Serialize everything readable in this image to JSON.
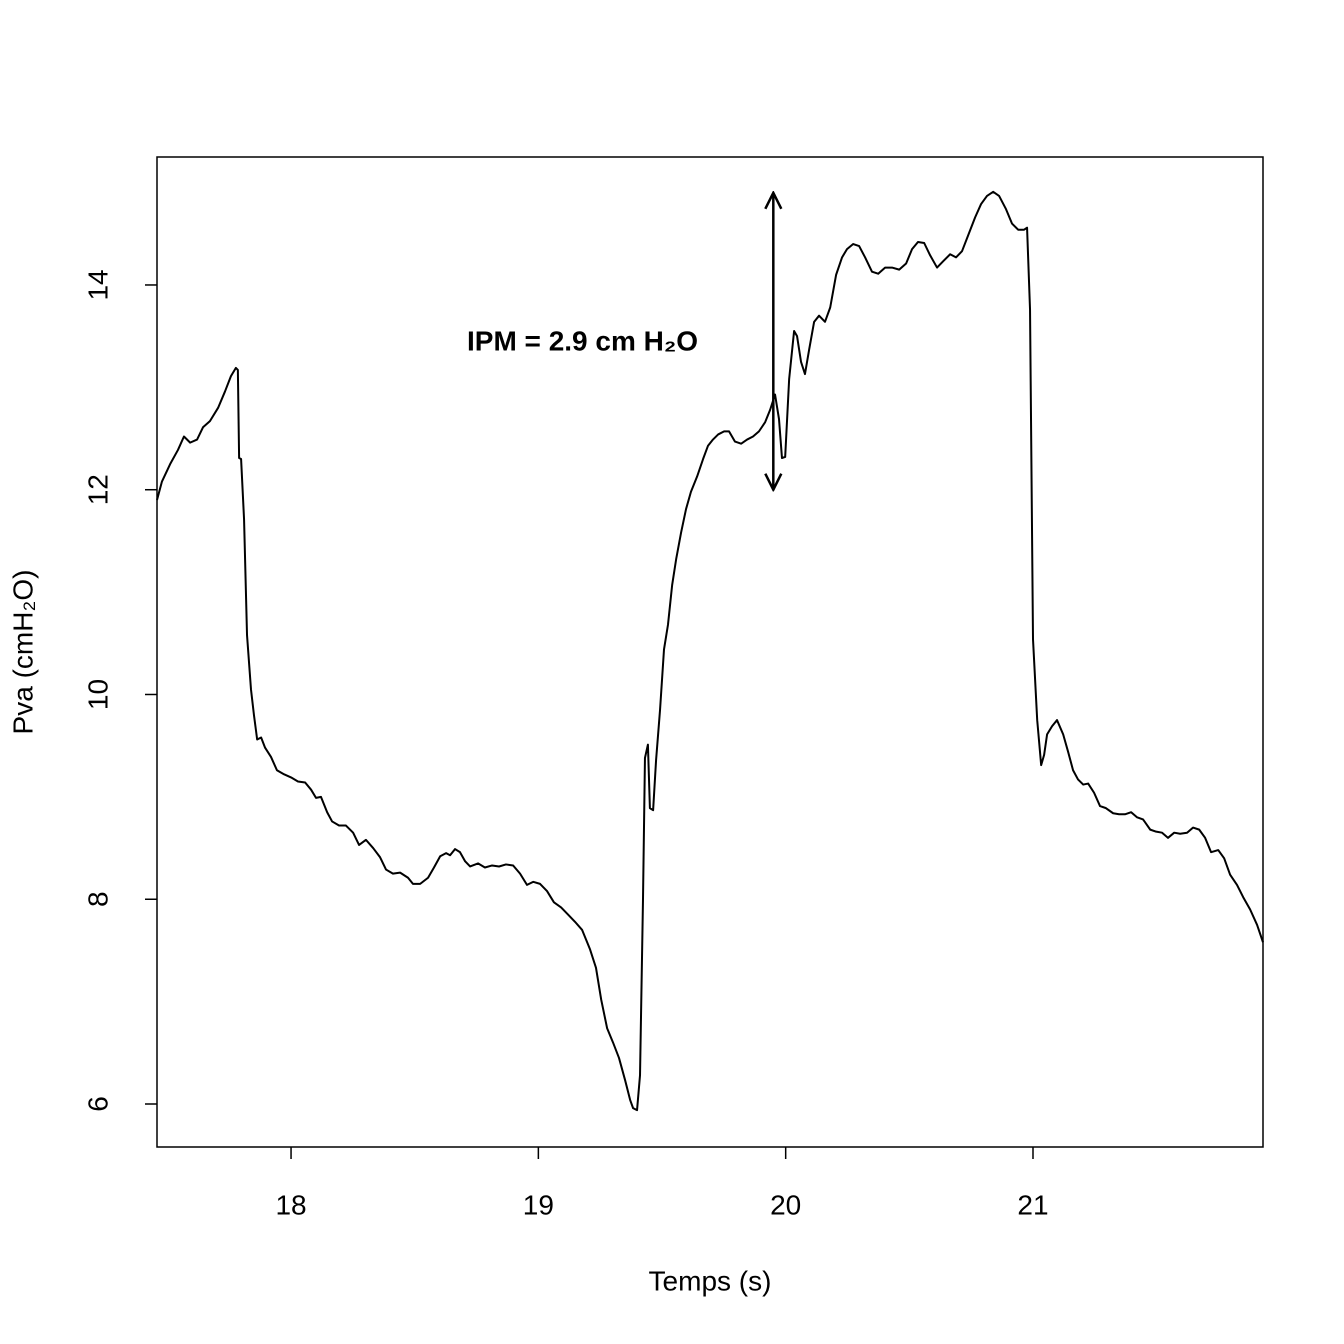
{
  "chart_data": {
    "type": "line",
    "x_label": "Temps (s)",
    "y_label": "Pva (cmH₂O)",
    "annotation": {
      "text": "IPM =  2.9 cm H₂O",
      "arrow_x": 19.95,
      "arrow_y": [
        12,
        14.9
      ]
    },
    "xlim": [
      17.458,
      21.93
    ],
    "ylim": [
      5.58,
      15.25
    ],
    "xticks": [
      18,
      19,
      20,
      21
    ],
    "yticks": [
      6,
      8,
      10,
      12,
      14
    ],
    "color": "#000000",
    "x": [
      17.458,
      17.478,
      17.511,
      17.543,
      17.567,
      17.592,
      17.62,
      17.644,
      17.672,
      17.705,
      17.733,
      17.757,
      17.777,
      17.785,
      17.79,
      17.798,
      17.81,
      17.822,
      17.838,
      17.85,
      17.863,
      17.879,
      17.895,
      17.919,
      17.943,
      17.972,
      18.0,
      18.028,
      18.057,
      18.081,
      18.101,
      18.121,
      18.146,
      18.166,
      18.194,
      18.222,
      18.251,
      18.275,
      18.303,
      18.332,
      18.36,
      18.384,
      18.412,
      18.441,
      18.473,
      18.493,
      18.522,
      18.554,
      18.578,
      18.603,
      18.627,
      18.643,
      18.663,
      18.683,
      18.704,
      18.724,
      18.756,
      18.784,
      18.813,
      18.841,
      18.869,
      18.898,
      18.926,
      18.954,
      18.979,
      19.007,
      19.035,
      19.063,
      19.092,
      19.12,
      19.148,
      19.177,
      19.209,
      19.233,
      19.254,
      19.278,
      19.302,
      19.326,
      19.351,
      19.371,
      19.383,
      19.399,
      19.411,
      19.423,
      19.431,
      19.443,
      19.451,
      19.464,
      19.476,
      19.492,
      19.508,
      19.524,
      19.541,
      19.557,
      19.577,
      19.597,
      19.617,
      19.642,
      19.666,
      19.686,
      19.706,
      19.727,
      19.751,
      19.771,
      19.795,
      19.82,
      19.844,
      19.868,
      19.892,
      19.917,
      19.937,
      19.957,
      19.973,
      19.985,
      19.998,
      20.014,
      20.034,
      20.046,
      20.062,
      20.078,
      20.095,
      20.115,
      20.135,
      20.159,
      20.18,
      20.204,
      20.228,
      20.248,
      20.273,
      20.297,
      20.321,
      20.349,
      20.374,
      20.402,
      20.43,
      20.459,
      20.487,
      20.511,
      20.535,
      20.56,
      20.584,
      20.612,
      20.636,
      20.665,
      20.689,
      20.713,
      20.737,
      20.766,
      20.79,
      20.814,
      20.839,
      20.863,
      20.891,
      20.915,
      20.94,
      20.964,
      20.976,
      20.988,
      21.0,
      21.017,
      21.033,
      21.045,
      21.057,
      21.077,
      21.097,
      21.122,
      21.142,
      21.162,
      21.182,
      21.203,
      21.223,
      21.247,
      21.271,
      21.295,
      21.324,
      21.348,
      21.372,
      21.397,
      21.421,
      21.445,
      21.474,
      21.498,
      21.522,
      21.546,
      21.571,
      21.595,
      21.623,
      21.647,
      21.672,
      21.696,
      21.72,
      21.749,
      21.773,
      21.797,
      21.825,
      21.85,
      21.878,
      21.906,
      21.93
    ],
    "values": [
      11.9,
      12.08,
      12.25,
      12.39,
      12.52,
      12.46,
      12.49,
      12.61,
      12.67,
      12.8,
      12.96,
      13.11,
      13.19,
      13.17,
      12.31,
      12.3,
      11.71,
      10.58,
      10.05,
      9.8,
      9.56,
      9.58,
      9.48,
      9.39,
      9.26,
      9.22,
      9.19,
      9.15,
      9.14,
      9.07,
      8.99,
      9.0,
      8.85,
      8.76,
      8.72,
      8.72,
      8.65,
      8.53,
      8.58,
      8.5,
      8.41,
      8.29,
      8.25,
      8.26,
      8.21,
      8.15,
      8.15,
      8.21,
      8.31,
      8.42,
      8.45,
      8.43,
      8.49,
      8.46,
      8.37,
      8.32,
      8.35,
      8.31,
      8.33,
      8.32,
      8.34,
      8.33,
      8.25,
      8.14,
      8.17,
      8.15,
      8.08,
      7.97,
      7.92,
      7.85,
      7.78,
      7.7,
      7.51,
      7.33,
      7.02,
      6.74,
      6.6,
      6.45,
      6.23,
      6.04,
      5.96,
      5.94,
      6.28,
      7.99,
      9.38,
      9.51,
      8.89,
      8.87,
      9.36,
      9.85,
      10.44,
      10.68,
      11.07,
      11.32,
      11.58,
      11.81,
      11.98,
      12.13,
      12.3,
      12.43,
      12.49,
      12.54,
      12.57,
      12.57,
      12.47,
      12.45,
      12.49,
      12.52,
      12.57,
      12.66,
      12.78,
      12.93,
      12.69,
      12.31,
      12.32,
      13.08,
      13.55,
      13.5,
      13.25,
      13.13,
      13.37,
      13.64,
      13.7,
      13.64,
      13.78,
      14.1,
      14.27,
      14.35,
      14.4,
      14.38,
      14.27,
      14.13,
      14.11,
      14.17,
      14.17,
      14.15,
      14.21,
      14.35,
      14.42,
      14.41,
      14.29,
      14.17,
      14.23,
      14.3,
      14.27,
      14.33,
      14.48,
      14.66,
      14.79,
      14.87,
      14.91,
      14.87,
      14.74,
      14.6,
      14.54,
      14.54,
      14.56,
      13.76,
      10.54,
      9.75,
      9.31,
      9.41,
      9.61,
      9.69,
      9.75,
      9.61,
      9.44,
      9.26,
      9.17,
      9.12,
      9.13,
      9.04,
      8.91,
      8.89,
      8.84,
      8.83,
      8.83,
      8.85,
      8.8,
      8.78,
      8.68,
      8.66,
      8.65,
      8.6,
      8.65,
      8.64,
      8.65,
      8.7,
      8.68,
      8.6,
      8.46,
      8.48,
      8.4,
      8.24,
      8.14,
      8.02,
      7.9,
      7.75,
      7.58
    ]
  }
}
